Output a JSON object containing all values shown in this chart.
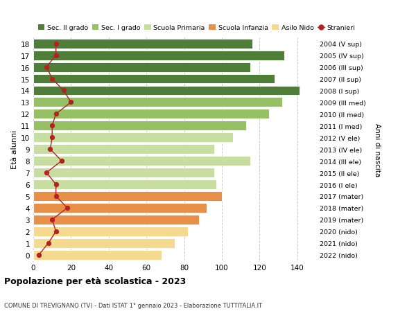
{
  "ages": [
    0,
    1,
    2,
    3,
    4,
    5,
    6,
    7,
    8,
    9,
    10,
    11,
    12,
    13,
    14,
    15,
    16,
    17,
    18
  ],
  "bar_values": [
    68,
    75,
    82,
    88,
    92,
    100,
    97,
    96,
    115,
    96,
    106,
    113,
    125,
    132,
    141,
    128,
    115,
    133,
    116
  ],
  "stranieri": [
    3,
    8,
    12,
    10,
    18,
    12,
    12,
    7,
    15,
    9,
    10,
    10,
    12,
    20,
    16,
    10,
    7,
    12,
    12
  ],
  "bar_colors": [
    "#f5d98e",
    "#f5d98e",
    "#f5d98e",
    "#e89048",
    "#e89048",
    "#e89048",
    "#c8dda0",
    "#c8dda0",
    "#c8dda0",
    "#c8dda0",
    "#c8dda0",
    "#96c064",
    "#96c064",
    "#96c064",
    "#4e7e38",
    "#4e7e38",
    "#4e7e38",
    "#4e7e38",
    "#4e7e38"
  ],
  "right_labels": [
    "2022 (nido)",
    "2021 (nido)",
    "2020 (nido)",
    "2019 (mater)",
    "2018 (mater)",
    "2017 (mater)",
    "2016 (I ele)",
    "2015 (II ele)",
    "2014 (III ele)",
    "2013 (IV ele)",
    "2012 (V ele)",
    "2011 (I med)",
    "2010 (II med)",
    "2009 (III med)",
    "2008 (I sup)",
    "2007 (II sup)",
    "2006 (III sup)",
    "2005 (IV sup)",
    "2004 (V sup)"
  ],
  "legend_labels": [
    "Sec. II grado",
    "Sec. I grado",
    "Scuola Primaria",
    "Scuola Infanzia",
    "Asilo Nido",
    "Stranieri"
  ],
  "legend_colors": [
    "#4e7e38",
    "#96c064",
    "#c8dda0",
    "#e89048",
    "#f5d98e",
    "#b22222"
  ],
  "ylabel": "Età alunni",
  "ylabel_right": "Anni di nascita",
  "title": "Popolazione per età scolastica - 2023",
  "subtitle": "COMUNE DI TREVIGNANO (TV) - Dati ISTAT 1° gennaio 2023 - Elaborazione TUTTITALIA.IT",
  "xlim": [
    0,
    150
  ],
  "xticks": [
    0,
    20,
    40,
    60,
    80,
    100,
    120,
    140
  ],
  "bg_color": "#ffffff",
  "grid_color": "#cccccc",
  "bar_height": 0.82
}
